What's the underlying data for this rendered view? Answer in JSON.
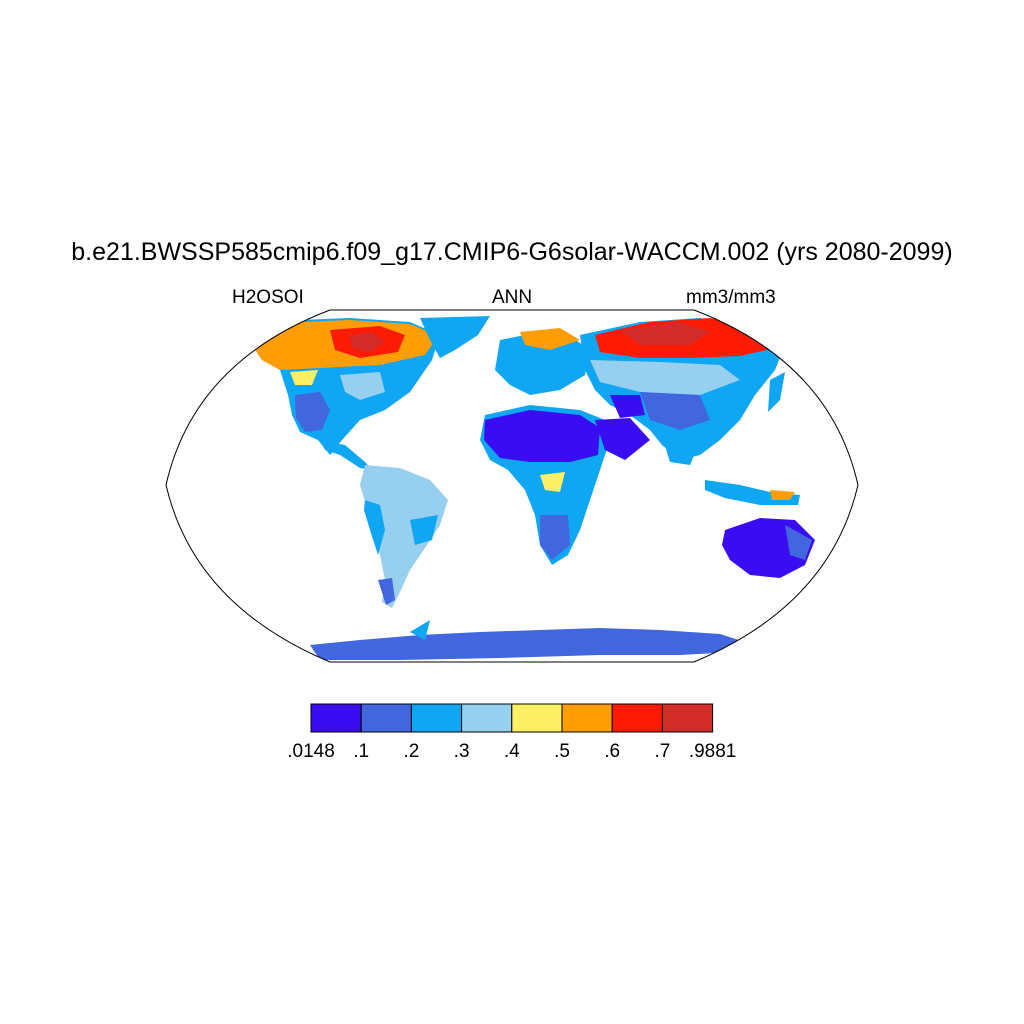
{
  "title": "b.e21.BWSSP585cmip6.f09_g17.CMIP6-G6solar-WACCM.002 (yrs 2080-2099)",
  "left_subtitle": "H2OSOI",
  "center_subtitle": "ANN",
  "right_subtitle": "mm3/mm3",
  "colorbar": {
    "labels": [
      ".0148",
      ".1",
      ".2",
      ".3",
      ".4",
      ".5",
      ".6",
      ".7",
      ".9881"
    ],
    "colors": [
      "#3a0cf2",
      "#4166dd",
      "#0fa6f4",
      "#97cfee",
      "#fef064",
      "#fe9d04",
      "#fd1b04",
      "#d42b2b"
    ]
  },
  "colors": {
    "very_dry": "#3a0cf2",
    "dry": "#4166dd",
    "medium_dry": "#0fa6f4",
    "medium": "#97cfee",
    "moist": "#fef064",
    "wet": "#fe9d04",
    "very_wet": "#fd1b04",
    "saturated": "#d42b2b"
  }
}
